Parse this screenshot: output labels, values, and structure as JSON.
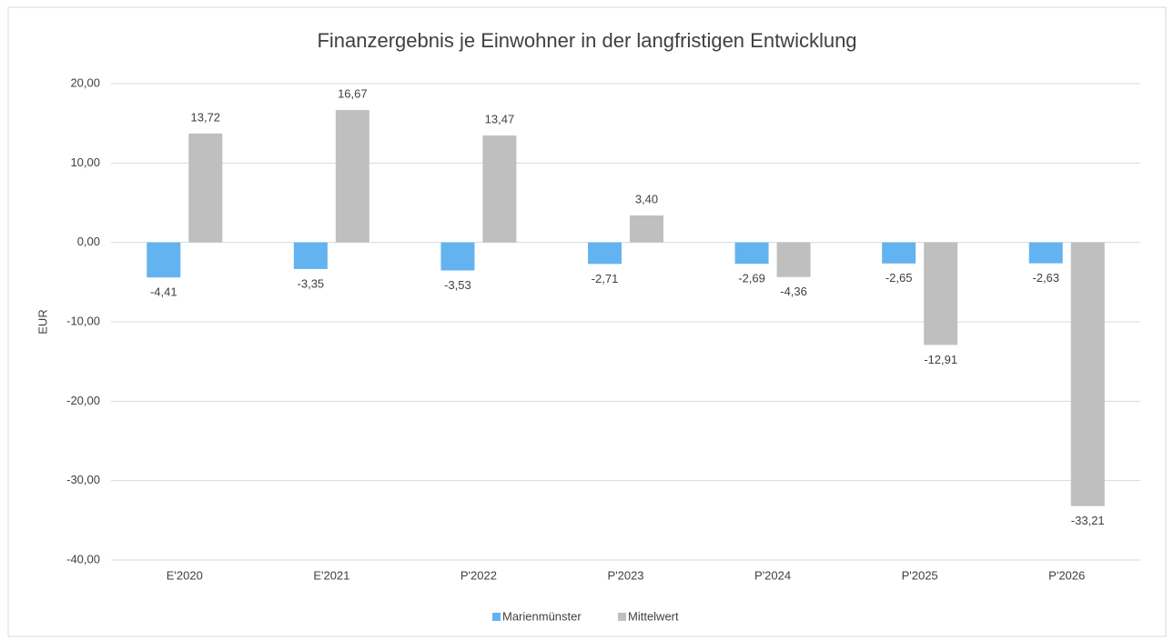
{
  "chart_data": {
    "type": "bar",
    "title": "Finanzergebnis je Einwohner in der langfristigen Entwicklung",
    "y_label": "EUR",
    "categories": [
      "E'2020",
      "E'2021",
      "P'2022",
      "P'2023",
      "P'2024",
      "P'2025",
      "P'2026"
    ],
    "series": [
      {
        "name": "Marienmünster",
        "color": "#63b3f0",
        "values": [
          -4.41,
          -3.35,
          -3.53,
          -2.71,
          -2.69,
          -2.65,
          -2.63
        ],
        "value_labels": [
          "-4,41",
          "-3,35",
          "-3,53",
          "-2,71",
          "-2,69",
          "-2,65",
          "-2,63"
        ]
      },
      {
        "name": "Mittelwert",
        "color": "#bfbfbf",
        "values": [
          13.72,
          16.67,
          13.47,
          3.4,
          -4.36,
          -12.91,
          -33.21
        ],
        "value_labels": [
          "13,72",
          "16,67",
          "13,47",
          "3,40",
          "-4,36",
          "-12,91",
          "-33,21"
        ]
      }
    ],
    "ylim": [
      -40,
      20
    ],
    "yticks": [
      {
        "value": -40,
        "label": "-40,00"
      },
      {
        "value": -30,
        "label": "-30,00"
      },
      {
        "value": -20,
        "label": "-20,00"
      },
      {
        "value": -10,
        "label": "-10,00"
      },
      {
        "value": 0,
        "label": "0,00"
      },
      {
        "value": 10,
        "label": "10,00"
      },
      {
        "value": 20,
        "label": "20,00"
      }
    ],
    "grid": true,
    "legend": "bottom"
  }
}
